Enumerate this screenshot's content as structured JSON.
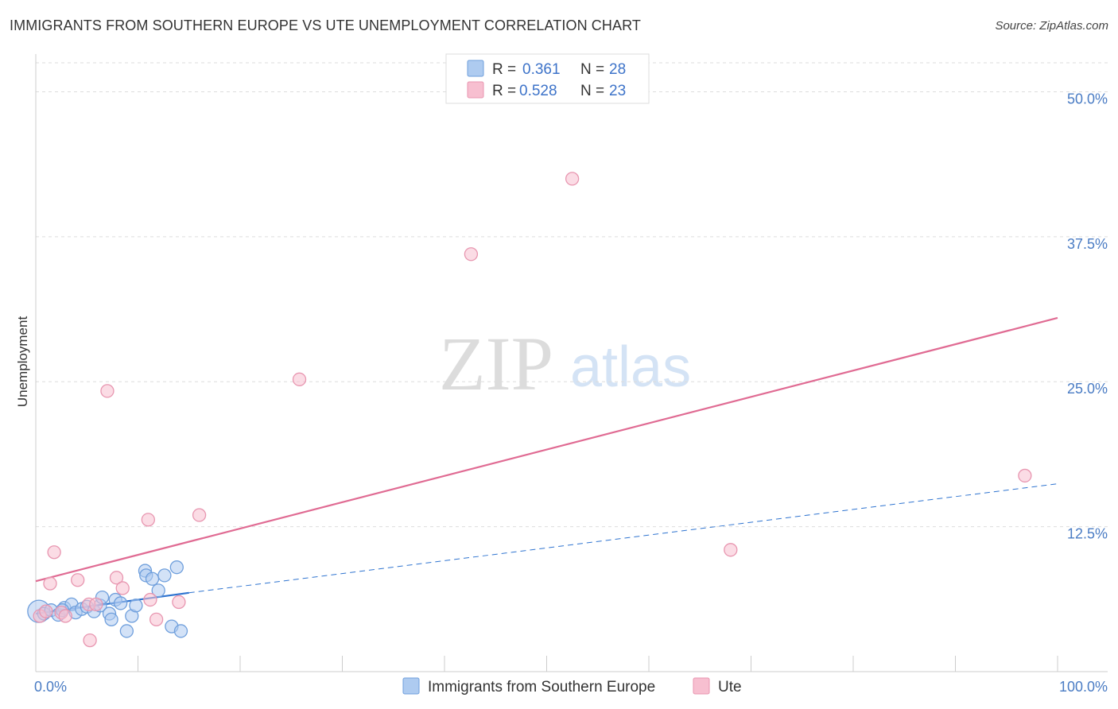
{
  "title": "IMMIGRANTS FROM SOUTHERN EUROPE VS UTE UNEMPLOYMENT CORRELATION CHART",
  "source": "Source: ZipAtlas.com",
  "watermark": {
    "zip": "ZIP",
    "atlas": "atlas"
  },
  "colors": {
    "blue_fill": "#aecbf0",
    "blue_stroke": "#6f9fdc",
    "blue_line": "#2f74d0",
    "pink_fill": "#f7bfd0",
    "pink_stroke": "#e896b0",
    "pink_line": "#e06b93",
    "grid": "#dddddd",
    "tick_label": "#4a7cc4"
  },
  "legend": {
    "rows": [
      {
        "r_label": "R =",
        "r_value": "0.361",
        "n_label": "N =",
        "n_value": "28",
        "series": "blue"
      },
      {
        "r_label": "R =",
        "r_value": "0.528",
        "n_label": "N =",
        "n_value": "23",
        "series": "pink"
      }
    ]
  },
  "bottom_legend": [
    {
      "label": "Immigrants from Southern Europe",
      "series": "blue"
    },
    {
      "label": "Ute",
      "series": "pink"
    }
  ],
  "chart_data": {
    "type": "scatter",
    "title": "IMMIGRANTS FROM SOUTHERN EUROPE VS UTE UNEMPLOYMENT CORRELATION CHART",
    "xlabel": "",
    "ylabel": "Unemployment",
    "xlim": [
      0,
      100
    ],
    "ylim": [
      0,
      52.5
    ],
    "x_tick_labels": [
      {
        "value": 0,
        "label": "0.0%"
      },
      {
        "value": 100,
        "label": "100.0%"
      }
    ],
    "y_tick_labels": [
      {
        "value": 12.5,
        "label": "12.5%"
      },
      {
        "value": 25,
        "label": "25.0%"
      },
      {
        "value": 37.5,
        "label": "37.5%"
      },
      {
        "value": 50,
        "label": "50.0%"
      }
    ],
    "series": [
      {
        "name": "Immigrants from Southern Europe",
        "color": "blue",
        "r": 0.361,
        "n": 28,
        "points": [
          {
            "x": 0.3,
            "y": 5.2,
            "big": true
          },
          {
            "x": 0.8,
            "y": 5.0
          },
          {
            "x": 1.5,
            "y": 5.3
          },
          {
            "x": 2.2,
            "y": 4.9
          },
          {
            "x": 2.8,
            "y": 5.5
          },
          {
            "x": 3.5,
            "y": 5.8
          },
          {
            "x": 3.9,
            "y": 5.1
          },
          {
            "x": 4.5,
            "y": 5.4
          },
          {
            "x": 5.0,
            "y": 5.6
          },
          {
            "x": 5.7,
            "y": 5.2
          },
          {
            "x": 6.3,
            "y": 5.7
          },
          {
            "x": 6.5,
            "y": 6.4
          },
          {
            "x": 7.2,
            "y": 5.0
          },
          {
            "x": 7.4,
            "y": 4.5
          },
          {
            "x": 7.8,
            "y": 6.2
          },
          {
            "x": 8.3,
            "y": 5.9
          },
          {
            "x": 8.9,
            "y": 3.5
          },
          {
            "x": 9.4,
            "y": 4.8
          },
          {
            "x": 9.8,
            "y": 5.7
          },
          {
            "x": 10.7,
            "y": 8.7
          },
          {
            "x": 10.8,
            "y": 8.3
          },
          {
            "x": 11.4,
            "y": 8.0
          },
          {
            "x": 12.0,
            "y": 7.0
          },
          {
            "x": 12.6,
            "y": 8.3
          },
          {
            "x": 13.3,
            "y": 3.9
          },
          {
            "x": 13.8,
            "y": 9.0
          },
          {
            "x": 14.2,
            "y": 3.5
          },
          {
            "x": 2.6,
            "y": 5.3
          }
        ],
        "trend_solid": {
          "x0": 0,
          "y0": 5.0,
          "x1": 15,
          "y1": 6.8
        },
        "trend_dashed": {
          "x0": 15,
          "y0": 6.8,
          "x1": 100,
          "y1": 16.2
        }
      },
      {
        "name": "Ute",
        "color": "pink",
        "r": 0.528,
        "n": 23,
        "points": [
          {
            "x": 0.4,
            "y": 4.8
          },
          {
            "x": 1.4,
            "y": 7.6
          },
          {
            "x": 1.8,
            "y": 10.3
          },
          {
            "x": 2.5,
            "y": 5.1
          },
          {
            "x": 2.9,
            "y": 4.8
          },
          {
            "x": 4.1,
            "y": 7.9
          },
          {
            "x": 5.2,
            "y": 5.8
          },
          {
            "x": 5.3,
            "y": 2.7
          },
          {
            "x": 5.9,
            "y": 5.8
          },
          {
            "x": 7.0,
            "y": 24.2
          },
          {
            "x": 7.9,
            "y": 8.1
          },
          {
            "x": 8.5,
            "y": 7.2
          },
          {
            "x": 11.0,
            "y": 13.1
          },
          {
            "x": 11.2,
            "y": 6.2
          },
          {
            "x": 11.8,
            "y": 4.5
          },
          {
            "x": 14.0,
            "y": 6.0
          },
          {
            "x": 16.0,
            "y": 13.5
          },
          {
            "x": 25.8,
            "y": 25.2
          },
          {
            "x": 42.6,
            "y": 36.0
          },
          {
            "x": 52.5,
            "y": 42.5
          },
          {
            "x": 68.0,
            "y": 10.5
          },
          {
            "x": 96.8,
            "y": 16.9
          },
          {
            "x": 1.0,
            "y": 5.2
          }
        ],
        "trend_solid": {
          "x0": 0,
          "y0": 7.8,
          "x1": 100,
          "y1": 30.5
        }
      }
    ],
    "grid": true,
    "legend_position": "top-center"
  }
}
